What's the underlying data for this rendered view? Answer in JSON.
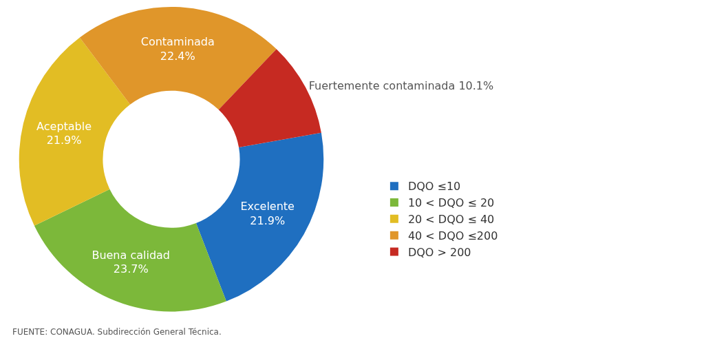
{
  "chart_data": {
    "type": "donut",
    "categories": [
      "DQO ≤10",
      "10 < DQO ≤ 20",
      "20 < DQO ≤ 40",
      "40 < DQO ≤200",
      "DQO > 200"
    ],
    "values": [
      21.9,
      23.7,
      21.9,
      22.4,
      10.1
    ],
    "colors": [
      "#1f6fc0",
      "#7cb83a",
      "#e2bd24",
      "#e0962a",
      "#c62a22"
    ],
    "value_labels": [
      "Excelente\n21.9%",
      "Buena calidad\n23.7%",
      "Aceptable\n21.9%",
      "Contaminada\n22.4%",
      "Fuertemente contaminada 10.1%"
    ],
    "legend": "right",
    "annotations": [
      "FUENTE: CONAGUA. Subdirección General Técnica."
    ]
  }
}
